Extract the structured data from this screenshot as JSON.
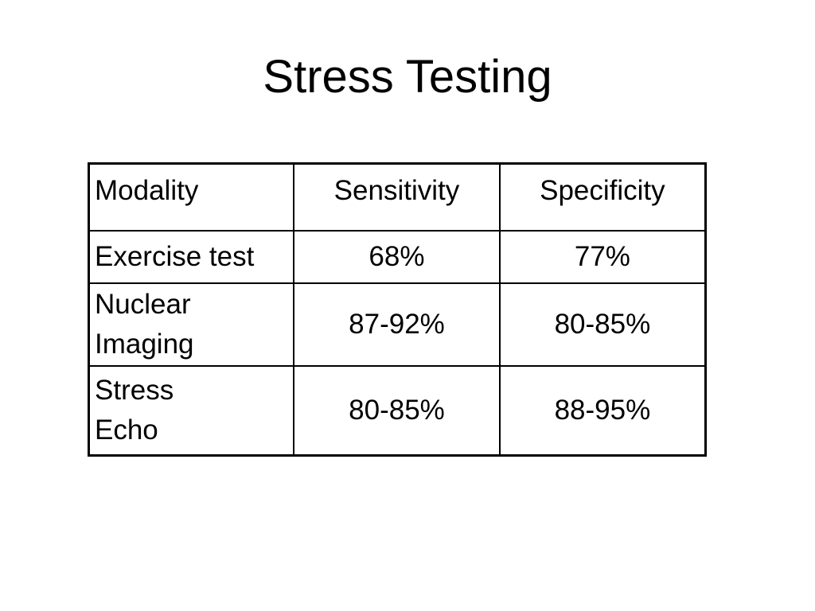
{
  "title": "Stress Testing",
  "table": {
    "headers": [
      "Modality",
      "Sensitivity",
      "Specificity"
    ],
    "rows": [
      {
        "modality": "Exercise test",
        "sensitivity": "68%",
        "specificity": "77%"
      },
      {
        "modality": "Nuclear\nImaging",
        "sensitivity": "87-92%",
        "specificity": "80-85%"
      },
      {
        "modality": "Stress\nEcho",
        "sensitivity": "80-85%",
        "specificity": "88-95%"
      }
    ]
  }
}
